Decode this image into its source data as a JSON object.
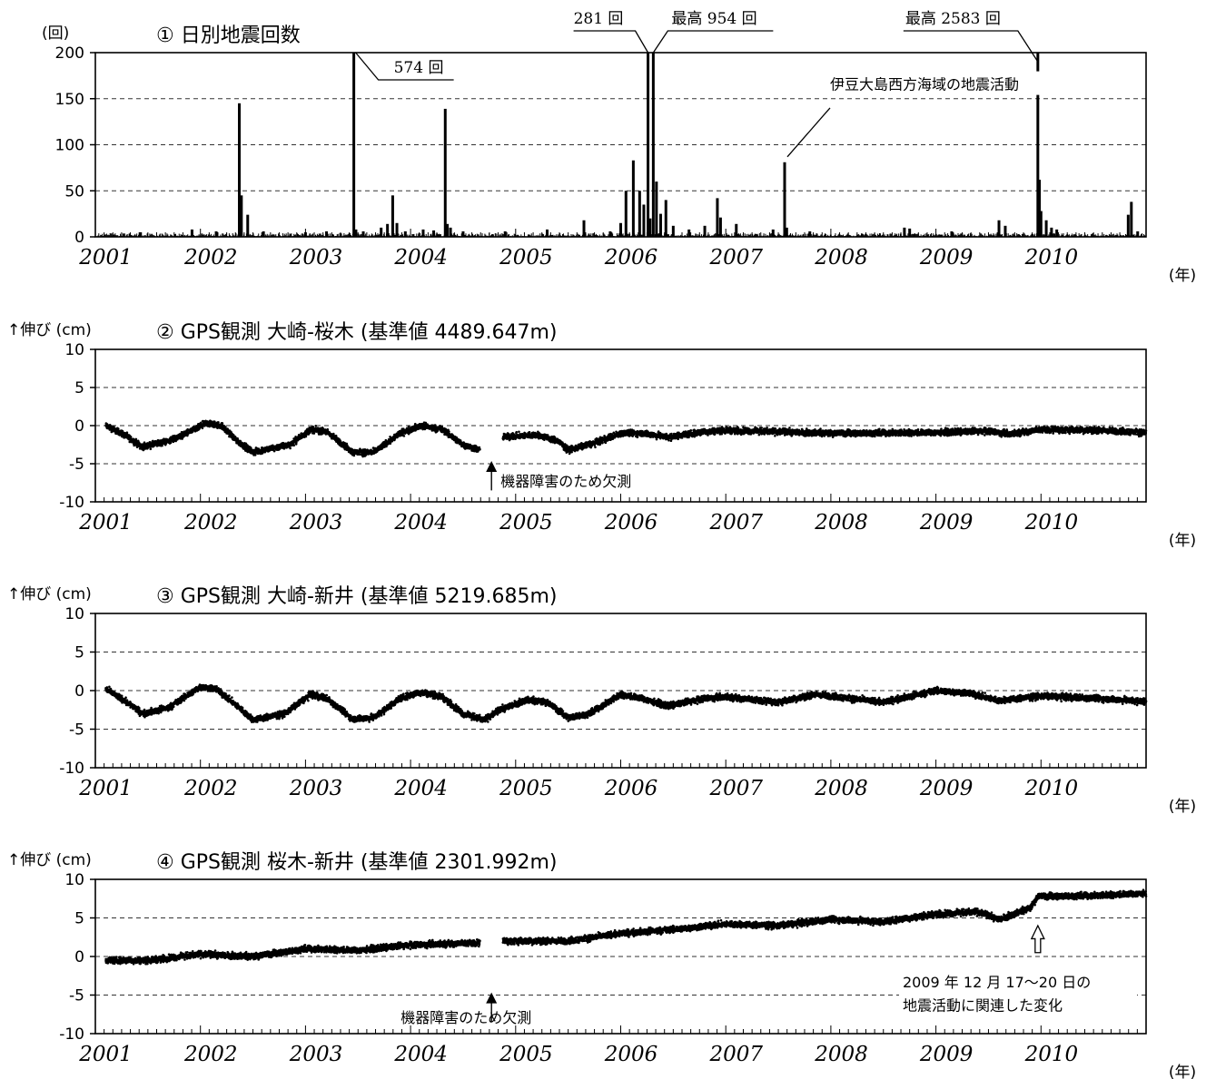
{
  "chart_data": [
    {
      "type": "bar",
      "title": "① 日別地震回数",
      "unit": "(回)",
      "x_unit": "(年)",
      "ylim": [
        0,
        200
      ],
      "yticks": [
        0,
        50,
        100,
        150,
        200
      ],
      "ytick_labels": [
        "0",
        "50",
        "100",
        "150",
        "200"
      ],
      "xlim": [
        2001.0,
        2011.0
      ],
      "xtick_labels": [
        "2001",
        "2002",
        "2003",
        "2004",
        "2005",
        "2006",
        "2007",
        "2008",
        "2009",
        "2010"
      ],
      "grid": "dashed horizontal",
      "background_level": 2,
      "spikes": [
        {
          "x": 2001.43,
          "y": 5
        },
        {
          "x": 2001.92,
          "y": 8
        },
        {
          "x": 2002.15,
          "y": 6
        },
        {
          "x": 2002.37,
          "y": 145
        },
        {
          "x": 2002.39,
          "y": 45
        },
        {
          "x": 2002.45,
          "y": 24
        },
        {
          "x": 2002.6,
          "y": 6
        },
        {
          "x": 2003.0,
          "y": 5
        },
        {
          "x": 2003.2,
          "y": 6
        },
        {
          "x": 2003.46,
          "y": 200
        },
        {
          "x": 2003.48,
          "y": 8
        },
        {
          "x": 2003.55,
          "y": 6
        },
        {
          "x": 2003.72,
          "y": 10
        },
        {
          "x": 2003.78,
          "y": 14
        },
        {
          "x": 2003.83,
          "y": 45
        },
        {
          "x": 2003.87,
          "y": 15
        },
        {
          "x": 2003.95,
          "y": 6
        },
        {
          "x": 2004.12,
          "y": 8
        },
        {
          "x": 2004.22,
          "y": 7
        },
        {
          "x": 2004.33,
          "y": 139
        },
        {
          "x": 2004.35,
          "y": 14
        },
        {
          "x": 2004.38,
          "y": 10
        },
        {
          "x": 2004.5,
          "y": 6
        },
        {
          "x": 2004.9,
          "y": 6
        },
        {
          "x": 2005.3,
          "y": 8
        },
        {
          "x": 2005.65,
          "y": 18
        },
        {
          "x": 2005.9,
          "y": 6
        },
        {
          "x": 2006.0,
          "y": 15
        },
        {
          "x": 2006.05,
          "y": 50
        },
        {
          "x": 2006.12,
          "y": 83
        },
        {
          "x": 2006.18,
          "y": 50
        },
        {
          "x": 2006.22,
          "y": 35
        },
        {
          "x": 2006.26,
          "y": 200
        },
        {
          "x": 2006.28,
          "y": 20
        },
        {
          "x": 2006.31,
          "y": 200
        },
        {
          "x": 2006.34,
          "y": 60
        },
        {
          "x": 2006.38,
          "y": 25
        },
        {
          "x": 2006.43,
          "y": 40
        },
        {
          "x": 2006.5,
          "y": 12
        },
        {
          "x": 2006.65,
          "y": 8
        },
        {
          "x": 2006.8,
          "y": 12
        },
        {
          "x": 2006.92,
          "y": 42
        },
        {
          "x": 2006.95,
          "y": 21
        },
        {
          "x": 2007.1,
          "y": 14
        },
        {
          "x": 2007.45,
          "y": 8
        },
        {
          "x": 2007.56,
          "y": 81
        },
        {
          "x": 2007.58,
          "y": 10
        },
        {
          "x": 2007.8,
          "y": 6
        },
        {
          "x": 2008.7,
          "y": 10
        },
        {
          "x": 2008.75,
          "y": 9
        },
        {
          "x": 2009.15,
          "y": 6
        },
        {
          "x": 2009.6,
          "y": 18
        },
        {
          "x": 2009.66,
          "y": 12
        },
        {
          "x": 2009.97,
          "y": 200
        },
        {
          "x": 2009.985,
          "y": 62
        },
        {
          "x": 2010.0,
          "y": 28
        },
        {
          "x": 2010.05,
          "y": 18
        },
        {
          "x": 2010.1,
          "y": 10
        },
        {
          "x": 2010.15,
          "y": 8
        },
        {
          "x": 2010.83,
          "y": 24
        },
        {
          "x": 2010.86,
          "y": 38
        },
        {
          "x": 2010.92,
          "y": 6
        }
      ],
      "annotations": [
        {
          "text": "574 回",
          "x": 2003.46,
          "y": 200
        },
        {
          "text": "281 回",
          "x": 2006.26,
          "y": 200
        },
        {
          "text": "最高 954 回",
          "x": 2006.31,
          "y": 200
        },
        {
          "text": "最高 2583 回",
          "x": 2009.97,
          "y": 200
        },
        {
          "text": "伊豆大島西方海域の地震活動",
          "x": 2007.56,
          "y": 81
        }
      ]
    },
    {
      "type": "scatter",
      "title": "② GPS観測 大崎-桜木 (基準値 4489.647m)",
      "unit": "↑伸び (cm)",
      "x_unit": "(年)",
      "ylim": [
        -10,
        10
      ],
      "yticks": [
        -10,
        -5,
        0,
        5,
        10
      ],
      "ytick_labels": [
        "-10",
        "-5",
        "0",
        "5",
        "10"
      ],
      "xlim": [
        2001.0,
        2011.0
      ],
      "xtick_labels": [
        "2001",
        "2002",
        "2003",
        "2004",
        "2005",
        "2006",
        "2007",
        "2008",
        "2009",
        "2010"
      ],
      "grid": "dashed horizontal",
      "data_gap": [
        2004.66,
        2004.88
      ],
      "trend_points": [
        [
          2001.1,
          0.0
        ],
        [
          2001.25,
          -1.0
        ],
        [
          2001.45,
          -2.8
        ],
        [
          2001.7,
          -2.0
        ],
        [
          2001.95,
          -0.5
        ],
        [
          2002.05,
          0.3
        ],
        [
          2002.2,
          0.0
        ],
        [
          2002.35,
          -2.0
        ],
        [
          2002.5,
          -3.5
        ],
        [
          2002.85,
          -2.5
        ],
        [
          2003.05,
          -0.5
        ],
        [
          2003.2,
          -0.8
        ],
        [
          2003.45,
          -3.5
        ],
        [
          2003.65,
          -3.5
        ],
        [
          2003.9,
          -1.0
        ],
        [
          2004.1,
          0.0
        ],
        [
          2004.3,
          -0.5
        ],
        [
          2004.5,
          -2.5
        ],
        [
          2004.66,
          -3.2
        ],
        [
          2004.88,
          -1.5
        ],
        [
          2005.2,
          -1.2
        ],
        [
          2005.4,
          -2.0
        ],
        [
          2005.5,
          -3.2
        ],
        [
          2005.75,
          -2.3
        ],
        [
          2006.0,
          -1.0
        ],
        [
          2006.2,
          -1.0
        ],
        [
          2006.45,
          -1.5
        ],
        [
          2006.8,
          -0.8
        ],
        [
          2007.0,
          -0.6
        ],
        [
          2008.0,
          -1.0
        ],
        [
          2009.0,
          -0.9
        ],
        [
          2009.5,
          -0.7
        ],
        [
          2009.7,
          -1.1
        ],
        [
          2010.0,
          -0.5
        ],
        [
          2010.5,
          -0.6
        ],
        [
          2011.0,
          -0.9
        ]
      ],
      "annotations": [
        {
          "text": "機器障害のため欠測",
          "x": 2004.77,
          "y": -5
        }
      ]
    },
    {
      "type": "scatter",
      "title": "③ GPS観測 大崎-新井 (基準値 5219.685m)",
      "unit": "↑伸び (cm)",
      "x_unit": "(年)",
      "ylim": [
        -10,
        10
      ],
      "yticks": [
        -10,
        -5,
        0,
        5,
        10
      ],
      "ytick_labels": [
        "-10",
        "-5",
        "0",
        "5",
        "10"
      ],
      "xlim": [
        2001.0,
        2011.0
      ],
      "xtick_labels": [
        "2001",
        "2002",
        "2003",
        "2004",
        "2005",
        "2006",
        "2007",
        "2008",
        "2009",
        "2010"
      ],
      "grid": "dashed horizontal",
      "trend_points": [
        [
          2001.1,
          0.2
        ],
        [
          2001.3,
          -1.5
        ],
        [
          2001.45,
          -3.0
        ],
        [
          2001.7,
          -2.2
        ],
        [
          2002.0,
          0.5
        ],
        [
          2002.15,
          0.2
        ],
        [
          2002.35,
          -2.0
        ],
        [
          2002.5,
          -3.8
        ],
        [
          2002.8,
          -3.0
        ],
        [
          2003.05,
          -0.5
        ],
        [
          2003.2,
          -1.0
        ],
        [
          2003.45,
          -3.7
        ],
        [
          2003.65,
          -3.5
        ],
        [
          2003.9,
          -1.0
        ],
        [
          2004.1,
          -0.2
        ],
        [
          2004.3,
          -0.8
        ],
        [
          2004.5,
          -3.0
        ],
        [
          2004.7,
          -3.8
        ],
        [
          2004.85,
          -2.5
        ],
        [
          2005.1,
          -1.2
        ],
        [
          2005.3,
          -1.5
        ],
        [
          2005.5,
          -3.5
        ],
        [
          2005.7,
          -3.0
        ],
        [
          2006.0,
          -0.5
        ],
        [
          2006.2,
          -1.0
        ],
        [
          2006.45,
          -2.0
        ],
        [
          2006.8,
          -1.0
        ],
        [
          2007.0,
          -0.8
        ],
        [
          2007.5,
          -1.5
        ],
        [
          2007.85,
          -0.5
        ],
        [
          2008.5,
          -1.5
        ],
        [
          2009.0,
          0.0
        ],
        [
          2009.3,
          -0.3
        ],
        [
          2009.6,
          -1.3
        ],
        [
          2010.0,
          -0.7
        ],
        [
          2010.5,
          -1.0
        ],
        [
          2011.0,
          -1.4
        ]
      ],
      "annotations": []
    },
    {
      "type": "scatter",
      "title": "④ GPS観測 桜木-新井 (基準値 2301.992m)",
      "unit": "↑伸び (cm)",
      "x_unit": "(年)",
      "ylim": [
        -10,
        10
      ],
      "yticks": [
        -10,
        -5,
        0,
        5,
        10
      ],
      "ytick_labels": [
        "-10",
        "-5",
        "0",
        "5",
        "10"
      ],
      "xlim": [
        2001.0,
        2011.0
      ],
      "xtick_labels": [
        "2001",
        "2002",
        "2003",
        "2004",
        "2005",
        "2006",
        "2007",
        "2008",
        "2009",
        "2010"
      ],
      "grid": "dashed horizontal",
      "data_gap": [
        2004.66,
        2004.88
      ],
      "trend_points": [
        [
          2001.1,
          -0.5
        ],
        [
          2001.5,
          -0.5
        ],
        [
          2002.0,
          0.3
        ],
        [
          2002.5,
          0.0
        ],
        [
          2003.0,
          1.0
        ],
        [
          2003.5,
          0.8
        ],
        [
          2004.0,
          1.5
        ],
        [
          2004.66,
          1.8
        ],
        [
          2004.88,
          2.0
        ],
        [
          2005.5,
          2.0
        ],
        [
          2006.0,
          3.0
        ],
        [
          2006.5,
          3.5
        ],
        [
          2007.0,
          4.2
        ],
        [
          2007.5,
          4.0
        ],
        [
          2008.0,
          4.8
        ],
        [
          2008.5,
          4.5
        ],
        [
          2009.0,
          5.5
        ],
        [
          2009.4,
          5.8
        ],
        [
          2009.6,
          4.8
        ],
        [
          2009.9,
          6.3
        ],
        [
          2009.97,
          7.8
        ],
        [
          2010.5,
          7.9
        ],
        [
          2011.0,
          8.2
        ]
      ],
      "annotations": [
        {
          "text": "機器障害のため欠測",
          "x": 2004.77,
          "y": -5
        },
        {
          "text": "2009 年 12 月 17～20 日の",
          "x": 2009.97,
          "y": -3.5
        },
        {
          "text": "地震活動に関連した変化",
          "x": 2009.97,
          "y": -6.5
        }
      ]
    }
  ]
}
